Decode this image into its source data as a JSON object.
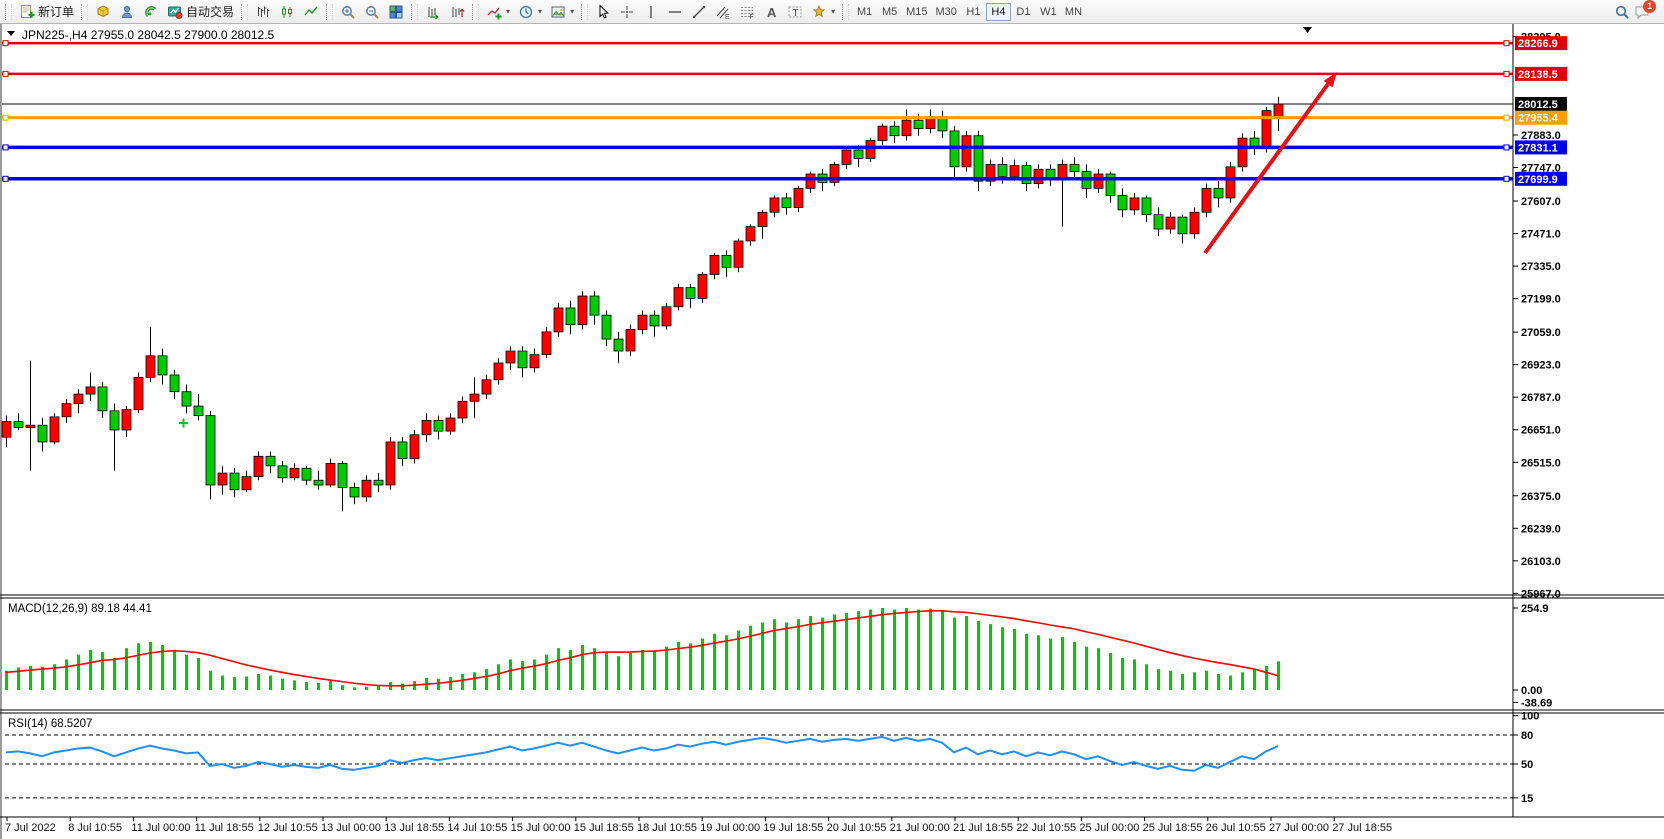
{
  "toolbar": {
    "new_order_label": "新订单",
    "auto_trading_label": "自动交易",
    "timeframes": [
      "M1",
      "M5",
      "M15",
      "M30",
      "H1",
      "H4",
      "D1",
      "W1",
      "MN"
    ],
    "active_timeframe": "H4",
    "chat_badge_count": "1"
  },
  "chart": {
    "title": "JPN225-,H4  27955.0 28042.5 27900.0 28012.5",
    "price_lines": [
      {
        "label": "28266.9",
        "color": "#e00000",
        "width": 2.5,
        "handles": true
      },
      {
        "label": "28138.5",
        "color": "#e00000",
        "width": 2.5,
        "handles": true
      },
      {
        "label": "28012.5",
        "color": "#000000",
        "width": 1,
        "handles": false
      },
      {
        "label": "27955.4",
        "color": "#ffa000",
        "width": 3,
        "handles": true
      },
      {
        "label": "27831.1",
        "color": "#0000ee",
        "width": 3.5,
        "handles": true
      },
      {
        "label": "27699.9",
        "color": "#0000ee",
        "width": 3.5,
        "handles": true
      }
    ],
    "price_ticks": [
      "28295.0",
      "27883.0",
      "27747.0",
      "27607.0",
      "27471.0",
      "27335.0",
      "27199.0",
      "27059.0",
      "26923.0",
      "26787.0",
      "26651.0",
      "26515.0",
      "26375.0",
      "26239.0",
      "26103.0",
      "25967.0"
    ],
    "macd_label": "MACD(12,26,9) 89.18 44.41",
    "macd_ticks": [
      "254.9",
      "0.00",
      "-38.69"
    ],
    "rsi_label": "RSI(14) 68.5207",
    "rsi_ticks": [
      "100",
      "80",
      "50",
      "15"
    ],
    "dates": [
      "7 Jul 2022",
      "8 Jul 10:55",
      "11 Jul 00:00",
      "11 Jul 18:55",
      "12 Jul 10:55",
      "13 Jul 00:00",
      "13 Jul 18:55",
      "14 Jul 10:55",
      "15 Jul 00:00",
      "15 Jul 18:55",
      "18 Jul 10:55",
      "19 Jul 00:00",
      "19 Jul 18:55",
      "20 Jul 10:55",
      "21 Jul 00:00",
      "21 Jul 18:55",
      "22 Jul 10:55",
      "25 Jul 00:00",
      "25 Jul 18:55",
      "26 Jul 10:55",
      "27 Jul 00:00",
      "27 Jul 18:55"
    ]
  },
  "chart_data": [
    {
      "type": "candlestick",
      "name": "JPN225- H4",
      "up_color": "#ff0000",
      "down_color": "#00cc00",
      "current_price": 28012.5,
      "horizontal_lines": [
        28266.9,
        28138.5,
        28012.5,
        27955.4,
        27831.1,
        27699.9
      ],
      "y_range": [
        25952,
        28330
      ],
      "ohlc": [
        [
          26620,
          26710,
          26580,
          26685
        ],
        [
          26685,
          26720,
          26650,
          26660
        ],
        [
          26660,
          26940,
          26480,
          26670
        ],
        [
          26670,
          26700,
          26560,
          26600
        ],
        [
          26600,
          26720,
          26590,
          26705
        ],
        [
          26705,
          26780,
          26680,
          26760
        ],
        [
          26760,
          26820,
          26720,
          26800
        ],
        [
          26800,
          26890,
          26770,
          26830
        ],
        [
          26830,
          26850,
          26700,
          26730
        ],
        [
          26730,
          26760,
          26480,
          26650
        ],
        [
          26650,
          26750,
          26620,
          26735
        ],
        [
          26735,
          26890,
          26720,
          26870
        ],
        [
          26870,
          27080,
          26850,
          26960
        ],
        [
          26960,
          26990,
          26840,
          26880
        ],
        [
          26880,
          26900,
          26780,
          26810
        ],
        [
          26810,
          26840,
          26720,
          26750
        ],
        [
          26750,
          26800,
          26690,
          26710
        ],
        [
          26710,
          26730,
          26360,
          26420
        ],
        [
          26420,
          26500,
          26380,
          26470
        ],
        [
          26470,
          26490,
          26370,
          26400
        ],
        [
          26400,
          26480,
          26390,
          26455
        ],
        [
          26455,
          26560,
          26440,
          26540
        ],
        [
          26540,
          26560,
          26470,
          26500
        ],
        [
          26500,
          26520,
          26430,
          26450
        ],
        [
          26450,
          26510,
          26440,
          26490
        ],
        [
          26490,
          26500,
          26420,
          26440
        ],
        [
          26440,
          26480,
          26400,
          26420
        ],
        [
          26420,
          26530,
          26410,
          26510
        ],
        [
          26510,
          26520,
          26310,
          26410
        ],
        [
          26410,
          26430,
          26340,
          26370
        ],
        [
          26370,
          26460,
          26350,
          26440
        ],
        [
          26440,
          26470,
          26390,
          26420
        ],
        [
          26420,
          26620,
          26400,
          26600
        ],
        [
          26600,
          26620,
          26500,
          26530
        ],
        [
          26530,
          26650,
          26510,
          26630
        ],
        [
          26630,
          26720,
          26600,
          26690
        ],
        [
          26690,
          26710,
          26610,
          26645
        ],
        [
          26645,
          26720,
          26630,
          26700
        ],
        [
          26700,
          26790,
          26680,
          26770
        ],
        [
          26770,
          26870,
          26700,
          26800
        ],
        [
          26800,
          26880,
          26780,
          26860
        ],
        [
          26860,
          26950,
          26840,
          26930
        ],
        [
          26930,
          27000,
          26900,
          26980
        ],
        [
          26980,
          27000,
          26870,
          26910
        ],
        [
          26910,
          26990,
          26890,
          26965
        ],
        [
          26965,
          27080,
          26950,
          27060
        ],
        [
          27060,
          27180,
          27040,
          27160
        ],
        [
          27160,
          27190,
          27050,
          27090
        ],
        [
          27090,
          27230,
          27070,
          27210
        ],
        [
          27210,
          27230,
          27090,
          27130
        ],
        [
          27130,
          27150,
          27000,
          27030
        ],
        [
          27030,
          27060,
          26930,
          26980
        ],
        [
          26980,
          27090,
          26960,
          27070
        ],
        [
          27070,
          27150,
          27050,
          27130
        ],
        [
          27130,
          27150,
          27040,
          27085
        ],
        [
          27085,
          27180,
          27070,
          27165
        ],
        [
          27165,
          27260,
          27150,
          27245
        ],
        [
          27245,
          27260,
          27160,
          27200
        ],
        [
          27200,
          27310,
          27180,
          27300
        ],
        [
          27300,
          27390,
          27280,
          27380
        ],
        [
          27380,
          27400,
          27290,
          27330
        ],
        [
          27330,
          27450,
          27310,
          27440
        ],
        [
          27440,
          27510,
          27420,
          27500
        ],
        [
          27500,
          27570,
          27450,
          27560
        ],
        [
          27560,
          27630,
          27540,
          27620
        ],
        [
          27620,
          27640,
          27550,
          27580
        ],
        [
          27580,
          27670,
          27560,
          27660
        ],
        [
          27660,
          27730,
          27640,
          27720
        ],
        [
          27720,
          27740,
          27650,
          27685
        ],
        [
          27685,
          27770,
          27670,
          27760
        ],
        [
          27760,
          27830,
          27740,
          27820
        ],
        [
          27820,
          27840,
          27750,
          27785
        ],
        [
          27785,
          27870,
          27770,
          27860
        ],
        [
          27860,
          27930,
          27840,
          27920
        ],
        [
          27920,
          27940,
          27850,
          27880
        ],
        [
          27880,
          27990,
          27860,
          27945
        ],
        [
          27945,
          27970,
          27880,
          27910
        ],
        [
          27910,
          27990,
          27890,
          27960
        ],
        [
          27960,
          27985,
          27870,
          27900
        ],
        [
          27900,
          27920,
          27700,
          27750
        ],
        [
          27750,
          27900,
          27730,
          27880
        ],
        [
          27880,
          27900,
          27650,
          27690
        ],
        [
          27690,
          27780,
          27670,
          27760
        ],
        [
          27760,
          27790,
          27680,
          27710
        ],
        [
          27710,
          27780,
          27690,
          27755
        ],
        [
          27755,
          27770,
          27650,
          27680
        ],
        [
          27680,
          27760,
          27660,
          27740
        ],
        [
          27740,
          27760,
          27670,
          27700
        ],
        [
          27700,
          27780,
          27500,
          27760
        ],
        [
          27760,
          27790,
          27700,
          27730
        ],
        [
          27730,
          27760,
          27620,
          27660
        ],
        [
          27660,
          27740,
          27640,
          27720
        ],
        [
          27720,
          27730,
          27600,
          27630
        ],
        [
          27630,
          27660,
          27540,
          27570
        ],
        [
          27570,
          27640,
          27550,
          27620
        ],
        [
          27620,
          27630,
          27520,
          27550
        ],
        [
          27550,
          27580,
          27460,
          27490
        ],
        [
          27490,
          27560,
          27470,
          27540
        ],
        [
          27540,
          27550,
          27430,
          27470
        ],
        [
          27470,
          27580,
          27450,
          27560
        ],
        [
          27560,
          27680,
          27540,
          27660
        ],
        [
          27660,
          27690,
          27580,
          27620
        ],
        [
          27620,
          27770,
          27600,
          27750
        ],
        [
          27750,
          27890,
          27730,
          27870
        ],
        [
          27870,
          27900,
          27800,
          27830
        ],
        [
          27830,
          28000,
          27810,
          27985
        ],
        [
          27955,
          28042.5,
          27900,
          28012.5
        ]
      ]
    },
    {
      "type": "bar",
      "name": "MACD(12,26,9)",
      "histogram_color": "#00cc00",
      "signal_color": "#ff0000",
      "y_ticks": [
        254.9,
        0.0,
        -38.69
      ],
      "last_values": [
        89.18,
        44.41
      ],
      "histogram": [
        60,
        70,
        75,
        72,
        80,
        95,
        110,
        125,
        118,
        100,
        130,
        145,
        150,
        140,
        125,
        110,
        100,
        60,
        45,
        40,
        42,
        50,
        45,
        35,
        30,
        25,
        22,
        28,
        15,
        8,
        10,
        12,
        25,
        20,
        28,
        38,
        35,
        40,
        50,
        55,
        65,
        80,
        95,
        90,
        95,
        110,
        130,
        125,
        140,
        130,
        115,
        105,
        115,
        125,
        120,
        135,
        150,
        145,
        160,
        175,
        170,
        185,
        200,
        210,
        220,
        210,
        220,
        230,
        225,
        235,
        240,
        245,
        250,
        255,
        250,
        255,
        250,
        253,
        245,
        225,
        230,
        215,
        205,
        195,
        190,
        175,
        170,
        160,
        165,
        150,
        135,
        130,
        115,
        100,
        95,
        80,
        65,
        60,
        50,
        55,
        60,
        50,
        45,
        55,
        65,
        75,
        89.18
      ],
      "signal_line": [
        55,
        58,
        62,
        65,
        68,
        72,
        78,
        85,
        92,
        95,
        100,
        108,
        115,
        120,
        122,
        120,
        116,
        108,
        98,
        88,
        78,
        70,
        62,
        55,
        48,
        42,
        36,
        31,
        26,
        21,
        17,
        14,
        13,
        13,
        15,
        18,
        21,
        25,
        30,
        36,
        42,
        50,
        60,
        68,
        74,
        82,
        92,
        100,
        110,
        116,
        118,
        118,
        118,
        120,
        121,
        124,
        129,
        133,
        139,
        146,
        152,
        159,
        167,
        176,
        185,
        191,
        197,
        204,
        209,
        214,
        219,
        224,
        229,
        234,
        238,
        241,
        244,
        246,
        246,
        243,
        241,
        237,
        232,
        227,
        222,
        215,
        209,
        202,
        196,
        190,
        181,
        173,
        164,
        155,
        146,
        136,
        126,
        116,
        107,
        99,
        92,
        85,
        79,
        72,
        65,
        55,
        44.41
      ]
    },
    {
      "type": "line",
      "name": "RSI(14)",
      "color": "#1e90ff",
      "levels": [
        80,
        50,
        15
      ],
      "y_ticks": [
        100,
        80,
        50,
        15
      ],
      "last_value": 68.5207,
      "values": [
        62,
        63,
        61,
        58,
        62,
        64,
        66,
        67,
        63,
        58,
        62,
        66,
        69,
        66,
        64,
        61,
        62,
        48,
        50,
        46,
        48,
        52,
        50,
        47,
        49,
        47,
        46,
        49,
        45,
        44,
        46,
        48,
        54,
        51,
        54,
        56,
        54,
        56,
        58,
        60,
        62,
        65,
        68,
        64,
        66,
        69,
        72,
        69,
        72,
        68,
        64,
        61,
        64,
        67,
        64,
        66,
        70,
        68,
        71,
        73,
        70,
        73,
        75,
        77,
        75,
        72,
        74,
        76,
        73,
        75,
        76,
        74,
        76,
        78,
        74,
        77,
        74,
        76,
        72,
        62,
        67,
        60,
        64,
        60,
        63,
        58,
        62,
        59,
        63,
        60,
        55,
        58,
        53,
        49,
        52,
        48,
        45,
        48,
        44,
        43,
        49,
        46,
        52,
        58,
        55,
        63,
        68.52
      ]
    }
  ]
}
